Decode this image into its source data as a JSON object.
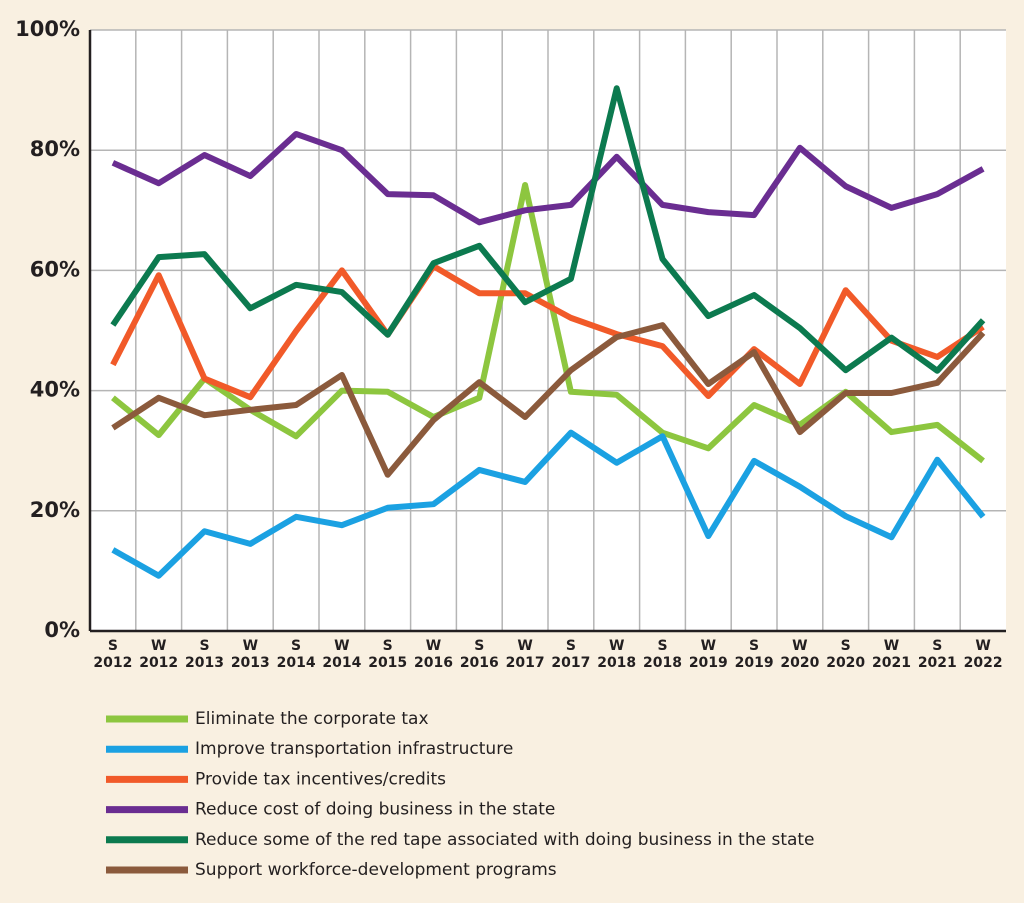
{
  "chart_data": {
    "type": "line",
    "categories": [
      [
        "S",
        "2012"
      ],
      [
        "W",
        "2012"
      ],
      [
        "S",
        "2013"
      ],
      [
        "W",
        "2013"
      ],
      [
        "S",
        "2014"
      ],
      [
        "W",
        "2014"
      ],
      [
        "S",
        "2015"
      ],
      [
        "W",
        "2016"
      ],
      [
        "S",
        "2016"
      ],
      [
        "W",
        "2017"
      ],
      [
        "S",
        "2017"
      ],
      [
        "W",
        "2018"
      ],
      [
        "S",
        "2018"
      ],
      [
        "W",
        "2019"
      ],
      [
        "S",
        "2019"
      ],
      [
        "W",
        "2020"
      ],
      [
        "S",
        "2020"
      ],
      [
        "W",
        "2021"
      ],
      [
        "S",
        "2021"
      ],
      [
        "W",
        "2022"
      ]
    ],
    "ylim": [
      0,
      100
    ],
    "yticks": [
      {
        "value": 0,
        "label": "0%"
      },
      {
        "value": 20,
        "label": "20%"
      },
      {
        "value": 40,
        "label": "40%"
      },
      {
        "value": 60,
        "label": "60%"
      },
      {
        "value": 80,
        "label": "80%"
      },
      {
        "value": 100,
        "label": "100%"
      }
    ],
    "grid": true,
    "series": [
      {
        "name": "Eliminate the corporate tax",
        "color": "#8dc63f",
        "values": [
          38.8,
          32.6,
          42,
          36.8,
          32.4,
          40,
          39.8,
          35.6,
          38.8,
          74.2,
          39.8,
          39.3,
          33,
          30.4,
          37.6,
          34.3,
          39.8,
          33.1,
          34.3,
          28.3
        ]
      },
      {
        "name": "Improve transportation infrastructure",
        "color": "#1ba1e2",
        "values": [
          13.5,
          9.2,
          16.6,
          14.5,
          19,
          17.6,
          20.5,
          21.1,
          26.8,
          24.8,
          33,
          28,
          32.4,
          15.8,
          28.3,
          24,
          19.1,
          15.6,
          28.5,
          19
        ]
      },
      {
        "name": "Provide tax incentives/credits",
        "color": "#f15a29",
        "values": [
          44.3,
          59.2,
          42,
          38.9,
          49.9,
          60,
          49.3,
          60.7,
          56.2,
          56.2,
          52.1,
          49.4,
          47.4,
          39.1,
          46.9,
          41.1,
          56.7,
          48.3,
          45.6,
          50.6
        ]
      },
      {
        "name": "Reduce cost of doing business in the state",
        "color": "#6a2d91",
        "values": [
          77.9,
          74.5,
          79.2,
          75.7,
          82.7,
          80,
          72.7,
          72.5,
          68,
          70,
          70.9,
          78.9,
          70.9,
          69.7,
          69.2,
          80.4,
          74,
          70.4,
          72.7,
          76.9
        ]
      },
      {
        "name": "Reduce some of the red tape associated with doing business in the state",
        "color": "#0c7a4f",
        "values": [
          50.9,
          62.2,
          62.7,
          53.7,
          57.6,
          56.4,
          49.3,
          61.2,
          64.1,
          54.7,
          58.6,
          90.3,
          61.9,
          52.4,
          55.9,
          50.4,
          43.4,
          48.8,
          43.3,
          51.7
        ]
      },
      {
        "name": "Support workforce-development programs",
        "color": "#8b5a3c",
        "values": [
          33.8,
          38.8,
          35.9,
          36.8,
          37.6,
          42.6,
          26,
          35.1,
          41.4,
          35.6,
          43.4,
          48.9,
          50.9,
          41.1,
          46.4,
          33.1,
          39.6,
          39.6,
          41.3,
          49.6
        ]
      }
    ]
  }
}
